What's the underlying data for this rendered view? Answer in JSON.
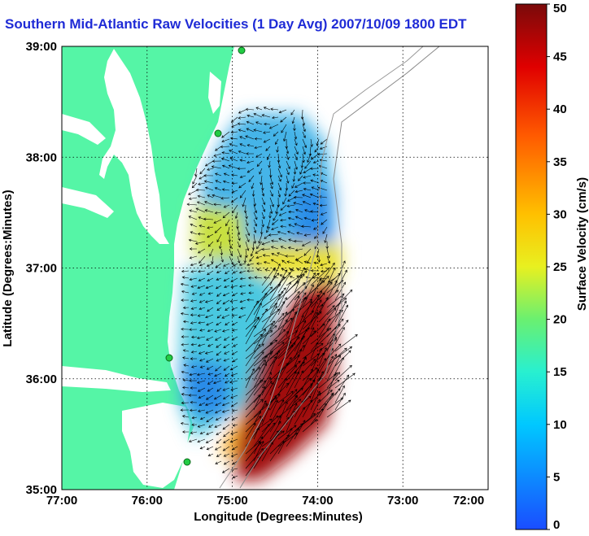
{
  "title": "Southern Mid-Atlantic Raw Velocities (1 Day Avg) 2007/10/09 1800 EDT",
  "x_axis": {
    "label": "Longitude (Degrees:Minutes)",
    "ticks": [
      "77:00",
      "76:00",
      "75:00",
      "74:00",
      "73:00",
      "72:00"
    ]
  },
  "y_axis": {
    "label": "Latitude (Degrees:Minutes)",
    "ticks": [
      "39:00",
      "38:00",
      "37:00",
      "36:00",
      "35:00"
    ]
  },
  "colorbar": {
    "label": "Surface Velocity (cm/s)",
    "ticks": [
      "50",
      "45",
      "40",
      "35",
      "30",
      "25",
      "20",
      "15",
      "10",
      "5",
      "0"
    ],
    "range": [
      0,
      50
    ]
  },
  "colors": {
    "land": "#55f5a6",
    "title": "#1f2bd6",
    "station": "#22cc44"
  }
}
